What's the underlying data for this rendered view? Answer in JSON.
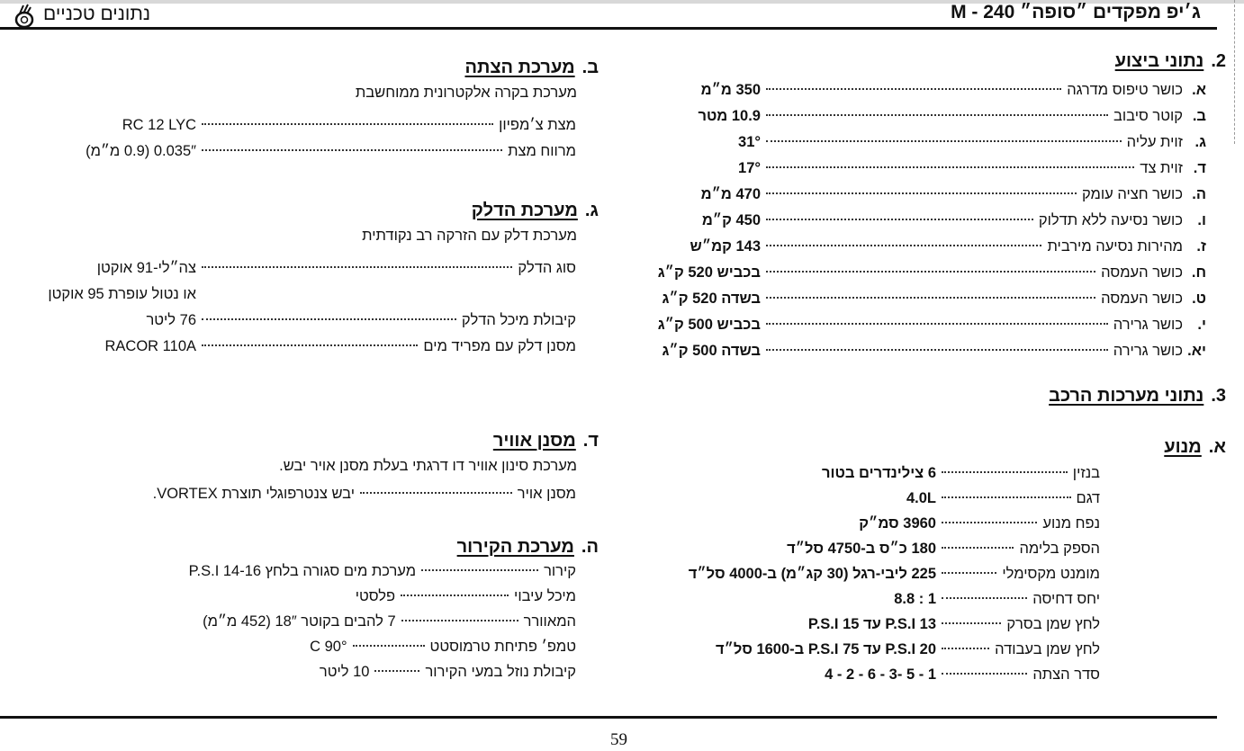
{
  "header": {
    "title": "ג׳יפ מפקדים ״סופה״ M - 240",
    "subtitle": "נתונים טכניים",
    "logo_icon": "tank-emblem-icon"
  },
  "performance": {
    "number": "2.",
    "heading": "נתוני ביצוע",
    "items": [
      {
        "marker": "א.",
        "label": "כושר טיפוס מדרגה",
        "value": "350 מ״מ"
      },
      {
        "marker": "ב.",
        "label": "קוטר סיבוב",
        "value": "10.9 מטר"
      },
      {
        "marker": "ג.",
        "label": "זוית עליה",
        "value": "31°"
      },
      {
        "marker": "ד.",
        "label": "זוית צד",
        "value": "17°"
      },
      {
        "marker": "ה.",
        "label": "כושר חציה עומק",
        "value": "470 מ״מ"
      },
      {
        "marker": "ו.",
        "label": "כושר נסיעה ללא תדלוק",
        "value": "450 ק״מ"
      },
      {
        "marker": "ז.",
        "label": "מהירות נסיעה מירבית",
        "value": "143 קמ״ש"
      },
      {
        "marker": "ח.",
        "label": "כושר העמסה",
        "value": "בכביש 520 ק״ג"
      },
      {
        "marker": "ט.",
        "label": "כושר העמסה",
        "value": "בשדה 520 ק״ג"
      },
      {
        "marker": "י.",
        "label": "כושר גרירה",
        "value": "בכביש 500 ק״ג"
      },
      {
        "marker": "יא.",
        "label": "כושר גרירה",
        "value": "בשדה 500 ק״ג"
      }
    ]
  },
  "systems": {
    "number": "3.",
    "heading": "נתוני מערכות הרכב",
    "engine": {
      "marker": "א.",
      "heading": "מנוע",
      "items": [
        {
          "label": "בנזין",
          "value": "6 צילינדרים בטור"
        },
        {
          "label": "דגם",
          "value": "4.0L"
        },
        {
          "label": "נפח מנוע",
          "value": "3960 סמ״ק"
        },
        {
          "label": "הספק בלימה",
          "value": "180 כ״ס ב-4750 סל״ד"
        },
        {
          "label": "מומנט מקסימלי",
          "value": "225 ליבי-רגל (30 קג״מ) ב-4000 סל״ד"
        },
        {
          "label": "יחס דחיסה",
          "value": "1 : 8.8"
        },
        {
          "label": "לחץ שמן בסרק",
          "value": "13 P.S.I עד 15 P.S.I"
        },
        {
          "label": "לחץ שמן בעבודה",
          "value": "20 P.S.I עד 75 P.S.I ב-1600 סל״ד"
        },
        {
          "label": "סדר הצתה",
          "value": "1 - 5 -3 - 6 - 2 - 4"
        }
      ]
    },
    "ignition": {
      "marker": "ב.",
      "heading": "מערכת הצתה",
      "description": "מערכת בקרה אלקטרונית ממוחשבת",
      "items": [
        {
          "label": "מצת צ׳מפיון",
          "value": "RC 12 LYC"
        },
        {
          "label": "מרווח מצת",
          "value": "0.035″ (0.9 מ״מ)"
        }
      ]
    },
    "fuel": {
      "marker": "ג.",
      "heading": "מערכת הדלק",
      "description": "מערכת דלק עם הזרקה רב נקודתית",
      "items": [
        {
          "label": "סוג הדלק",
          "value": "צה״לי-91 אוקטן"
        },
        {
          "label": "",
          "value": "או נטול עופרת 95 אוקטן"
        },
        {
          "label": "קיבולת מיכל הדלק",
          "value": "76 ליטר"
        },
        {
          "label": "מסנן דלק עם מפריד מים",
          "value": "RACOR 110A"
        }
      ]
    },
    "air_filter": {
      "marker": "ד.",
      "heading": "מסנן אוויר",
      "description": "מערכת סינון אוויר דו דרגתי בעלת מסנן אויר יבש.",
      "items": [
        {
          "label": "מסנן אויר",
          "value": "יבש צנטרפוגלי תוצרת VORTEX."
        }
      ]
    },
    "cooling": {
      "marker": "ה.",
      "heading": "מערכת הקירור",
      "items": [
        {
          "label": "קירור",
          "value": "מערכת מים סגורה בלחץ 14-16 P.S.I"
        },
        {
          "label": "מיכל עיבוי",
          "value": "פלסטי"
        },
        {
          "label": "המאוורר",
          "value": "7 להבים בקוטר 18″ (452 מ״מ)"
        },
        {
          "label": "טמפ׳ פתיחת טרמוסטט",
          "value": "90° C"
        },
        {
          "label": "קיבולת נוזל במעי הקירור",
          "value": "10 ליטר"
        }
      ]
    }
  },
  "footer": {
    "page_number": "59"
  }
}
